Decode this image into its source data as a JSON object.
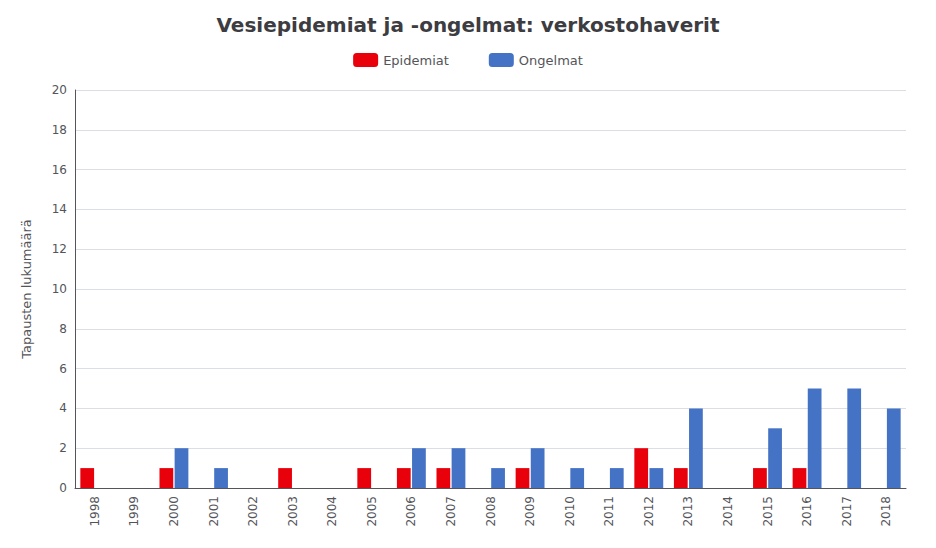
{
  "chart_data": {
    "type": "bar",
    "title": "Vesiepidemiat ja -ongelmat: verkostohaverit",
    "ylabel": "Tapausten lukumäärä",
    "categories": [
      "1998",
      "1999",
      "2000",
      "2001",
      "2002",
      "2003",
      "2004",
      "2005",
      "2006",
      "2007",
      "2008",
      "2009",
      "2010",
      "2011",
      "2012",
      "2013",
      "2014",
      "2015",
      "2016",
      "2017",
      "2018"
    ],
    "series": [
      {
        "name": "Epidemiat",
        "color": "#e8000b",
        "values": [
          1,
          0,
          1,
          0,
          0,
          1,
          0,
          1,
          1,
          1,
          0,
          1,
          0,
          0,
          2,
          1,
          0,
          1,
          1,
          0,
          0
        ]
      },
      {
        "name": "Ongelmat",
        "color": "#4472c4",
        "values": [
          0,
          0,
          2,
          1,
          0,
          0,
          0,
          0,
          2,
          2,
          1,
          2,
          1,
          1,
          1,
          4,
          0,
          3,
          5,
          5,
          4
        ]
      }
    ],
    "ylim": [
      0,
      20
    ],
    "yticks": [
      0,
      2,
      4,
      6,
      8,
      10,
      12,
      14,
      16,
      18,
      20
    ],
    "grid": true,
    "legend": "top"
  }
}
